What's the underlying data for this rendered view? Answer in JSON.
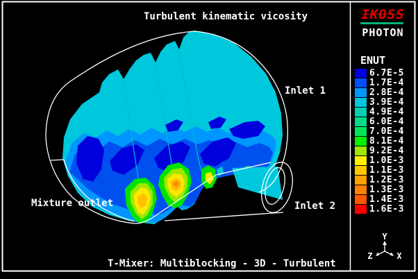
{
  "header": {
    "title": "Turbulent kinematic vicosity"
  },
  "branding": {
    "logo_text": "IKOSS",
    "logo_color": "#E00000",
    "underline_color": "#00B478",
    "app_name": "PHOTON"
  },
  "legend": {
    "variable": "ENUT",
    "entries": [
      {
        "label": "6.7E-5",
        "color": "#0000E0"
      },
      {
        "label": "1.7E-4",
        "color": "#0050FF"
      },
      {
        "label": "2.8E-4",
        "color": "#0096FF"
      },
      {
        "label": "3.9E-4",
        "color": "#00C8DC"
      },
      {
        "label": "4.9E-4",
        "color": "#00D2B4"
      },
      {
        "label": "6.0E-4",
        "color": "#00DC8C"
      },
      {
        "label": "7.0E-4",
        "color": "#00E65A"
      },
      {
        "label": "8.1E-4",
        "color": "#00F000"
      },
      {
        "label": "9.2E-4",
        "color": "#A0E600"
      },
      {
        "label": "1.0E-3",
        "color": "#FFF000"
      },
      {
        "label": "1.1E-3",
        "color": "#FFC800"
      },
      {
        "label": "1.2E-3",
        "color": "#FFA000"
      },
      {
        "label": "1.3E-3",
        "color": "#FF8200"
      },
      {
        "label": "1.4E-3",
        "color": "#FF5A00"
      },
      {
        "label": "1.6E-3",
        "color": "#FF0000"
      }
    ]
  },
  "plot_labels": {
    "inlet1": "Inlet 1",
    "inlet2": "Inlet 2",
    "outlet": "Mixture outlet",
    "caption": "T-Mixer: Multiblocking - 3D - Turbulent"
  },
  "axes_triad": {
    "x": "X",
    "y": "Y",
    "z": "Z"
  },
  "palette": {
    "cyan": "#00C8DC",
    "light_blue": "#0096FF",
    "blue": "#0050F0",
    "dark_blue": "#0000DC",
    "teal": "#00DC96",
    "green": "#00E400",
    "yellow_green": "#A0E600",
    "yellow": "#FFE800",
    "gold": "#FFC000",
    "orange": "#FF8C00",
    "frame": "#FFFFFF",
    "background": "#000000"
  },
  "chart_data": {
    "type": "heatmap",
    "title": "Turbulent kinematic vicosity",
    "variable": "ENUT",
    "caption": "T-Mixer: Multiblocking - 3D - Turbulent",
    "legend_position": "right",
    "value_range": [
      6.7e-05,
      0.0016
    ],
    "level_labels": [
      "6.7E-5",
      "1.7E-4",
      "2.8E-4",
      "3.9E-4",
      "4.9E-4",
      "6.0E-4",
      "7.0E-4",
      "8.1E-4",
      "9.2E-4",
      "1.0E-3",
      "1.1E-3",
      "1.2E-3",
      "1.3E-3",
      "1.4E-3",
      "1.6E-3"
    ],
    "level_values": [
      6.7e-05,
      0.00017,
      0.00028,
      0.00039,
      0.00049,
      0.0006,
      0.0007,
      0.00081,
      0.00092,
      0.001,
      0.0011,
      0.0012,
      0.0013,
      0.0014,
      0.0016
    ],
    "level_colors": [
      "#0000E0",
      "#0050FF",
      "#0096FF",
      "#00C8DC",
      "#00D2B4",
      "#00DC8C",
      "#00E65A",
      "#00F000",
      "#A0E600",
      "#FFF000",
      "#FFC800",
      "#FFA000",
      "#FF8200",
      "#FF5A00",
      "#FF0000"
    ],
    "annotations": [
      "Inlet 1",
      "Inlet 2",
      "Mixture outlet"
    ]
  }
}
